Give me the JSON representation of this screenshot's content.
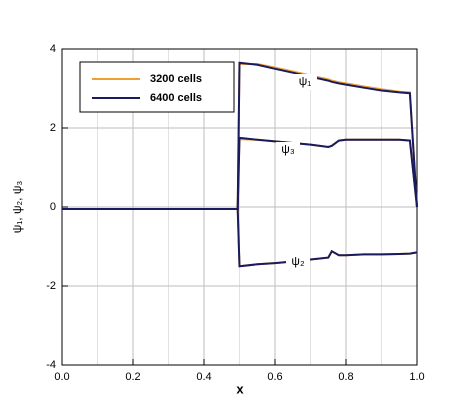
{
  "chart_data": {
    "type": "line",
    "x_label": "x",
    "y_label": "ψ₁, ψ₂, ψ₃",
    "curve_labels": [
      "ψ₁",
      "ψ₂",
      "ψ₃"
    ],
    "x": [
      0,
      0.1,
      0.2,
      0.3,
      0.4,
      0.495,
      0.5,
      0.55,
      0.6,
      0.65,
      0.7,
      0.75,
      0.76,
      0.78,
      0.8,
      0.85,
      0.9,
      0.95,
      0.98,
      1.0
    ],
    "series": [
      {
        "name": "3200 cells",
        "color": "#f0a030",
        "values": [
          [
            -0.05,
            -0.05,
            -0.05,
            -0.05,
            -0.05,
            -0.05,
            3.62,
            3.62,
            3.53,
            3.43,
            3.33,
            3.23,
            3.2,
            3.16,
            3.13,
            3.05,
            2.98,
            2.92,
            2.9,
            0
          ],
          [
            -0.05,
            -0.05,
            -0.05,
            -0.05,
            -0.05,
            -0.05,
            -1.5,
            -1.45,
            -1.42,
            -1.38,
            -1.33,
            -1.28,
            -1.12,
            -1.22,
            -1.22,
            -1.2,
            -1.2,
            -1.19,
            -1.18,
            -1.15
          ],
          [
            -0.05,
            -0.05,
            -0.05,
            -0.05,
            -0.05,
            -0.05,
            1.72,
            1.7,
            1.66,
            1.62,
            1.58,
            1.52,
            1.55,
            1.68,
            1.7,
            1.7,
            1.7,
            1.7,
            1.68,
            0
          ]
        ]
      },
      {
        "name": "6400 cells",
        "color": "#1a1a5e",
        "values": [
          [
            -0.05,
            -0.05,
            -0.05,
            -0.05,
            -0.05,
            -0.05,
            3.65,
            3.6,
            3.5,
            3.4,
            3.3,
            3.2,
            3.17,
            3.13,
            3.1,
            3.02,
            2.95,
            2.9,
            2.88,
            0
          ],
          [
            -0.05,
            -0.05,
            -0.05,
            -0.05,
            -0.05,
            -0.05,
            -1.5,
            -1.45,
            -1.42,
            -1.38,
            -1.33,
            -1.28,
            -1.12,
            -1.22,
            -1.22,
            -1.2,
            -1.2,
            -1.19,
            -1.18,
            -1.15
          ],
          [
            -0.05,
            -0.05,
            -0.05,
            -0.05,
            -0.05,
            -0.05,
            1.75,
            1.7,
            1.66,
            1.62,
            1.58,
            1.52,
            1.55,
            1.68,
            1.7,
            1.7,
            1.7,
            1.7,
            1.68,
            0
          ]
        ]
      }
    ],
    "xlim": [
      0,
      1
    ],
    "xticks": [
      {
        "value": 0,
        "label": "0.0"
      },
      0.2,
      0.4,
      0.6,
      0.8,
      {
        "value": 1,
        "label": "1.0"
      }
    ],
    "x_minor_grid": [
      0.1,
      0.3,
      0.5,
      0.7,
      0.9
    ],
    "ylim": [
      -4,
      4
    ],
    "yticks": [
      -4,
      -2,
      0,
      2,
      4
    ],
    "grid": true
  }
}
